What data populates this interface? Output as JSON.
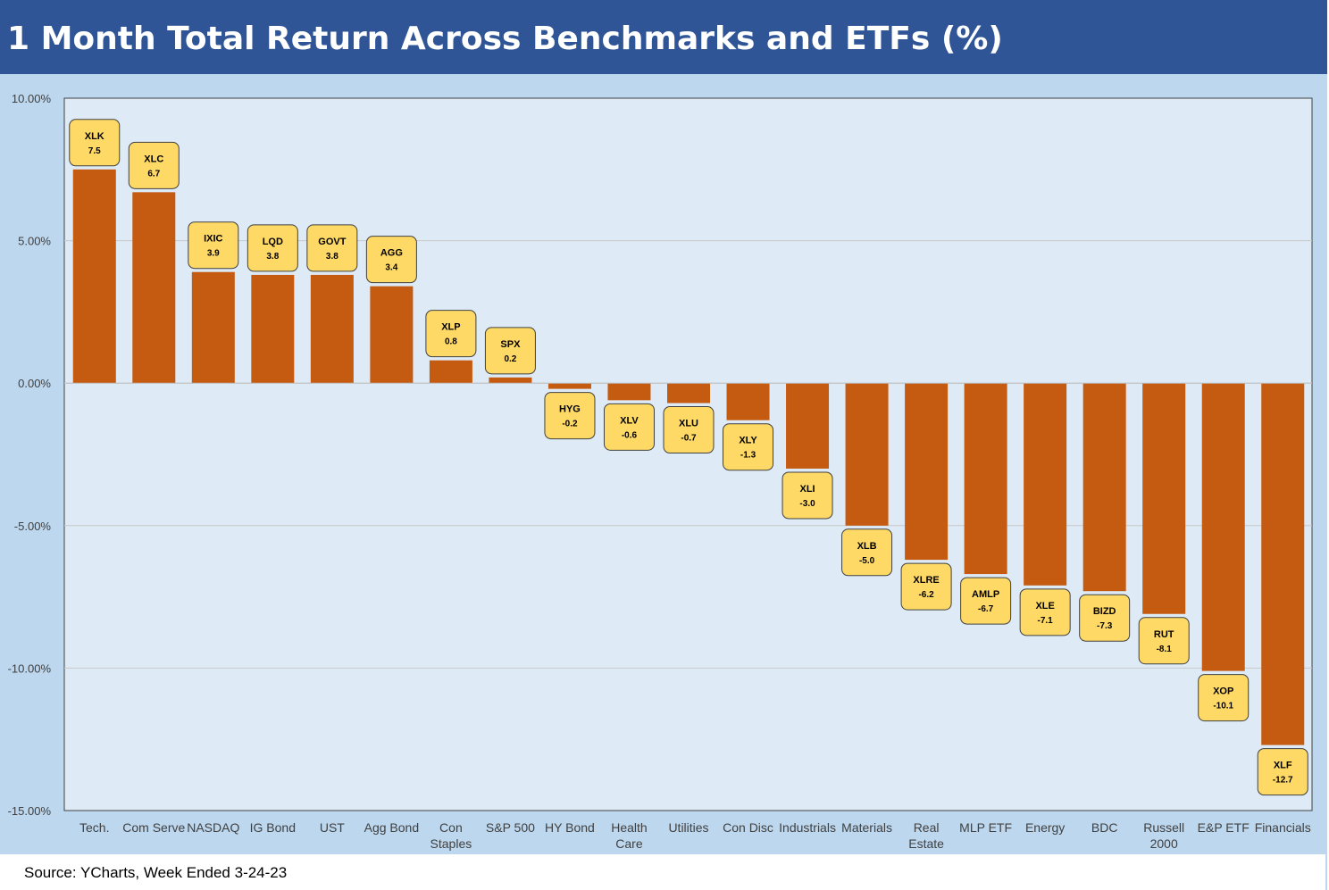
{
  "title": "1 Month Total Return Across Benchmarks and ETFs (%)",
  "source": "Source: YCharts, Week Ended 3-24-23",
  "colors": {
    "header": "#2f5597",
    "bar": "#c55a11",
    "label_bg": "#ffd966",
    "plot_bg": "#deebf7",
    "outer_bg": "#bdd7ee"
  },
  "chart_data": {
    "type": "bar",
    "title": "1 Month Total Return Across Benchmarks and ETFs (%)",
    "xlabel": "",
    "ylabel": "",
    "ylim": [
      -15,
      10
    ],
    "yticks": [
      10,
      5,
      0,
      -5,
      -10,
      -15
    ],
    "ytick_labels": [
      "10.00%",
      "5.00%",
      "0.00%",
      "-5.00%",
      "-10.00%",
      "-15.00%"
    ],
    "grid": true,
    "categories": [
      [
        "Tech."
      ],
      [
        "Com Serve"
      ],
      [
        "NASDAQ"
      ],
      [
        "IG Bond"
      ],
      [
        "UST"
      ],
      [
        "Agg Bond"
      ],
      [
        "Con",
        "Staples"
      ],
      [
        "S&P 500"
      ],
      [
        "HY Bond"
      ],
      [
        "Health",
        "Care"
      ],
      [
        "Utilities"
      ],
      [
        "Con Disc"
      ],
      [
        "Industrials"
      ],
      [
        "Materials"
      ],
      [
        "Real",
        "Estate"
      ],
      [
        "MLP ETF"
      ],
      [
        "Energy"
      ],
      [
        "BDC"
      ],
      [
        "Russell",
        "2000"
      ],
      [
        "E&P ETF"
      ],
      [
        "Financials"
      ]
    ],
    "tickers": [
      "XLK",
      "XLC",
      "IXIC",
      "LQD",
      "GOVT",
      "AGG",
      "XLP",
      "SPX",
      "HYG",
      "XLV",
      "XLU",
      "XLY",
      "XLI",
      "XLB",
      "XLRE",
      "AMLP",
      "XLE",
      "BIZD",
      "RUT",
      "XOP",
      "XLF"
    ],
    "values": [
      7.5,
      6.7,
      3.9,
      3.8,
      3.8,
      3.4,
      0.8,
      0.2,
      -0.2,
      -0.6,
      -0.7,
      -1.3,
      -3.0,
      -5.0,
      -6.2,
      -6.7,
      -7.1,
      -7.3,
      -8.1,
      -10.1,
      -12.7
    ],
    "value_labels": [
      "7.5",
      "6.7",
      "3.9",
      "3.8",
      "3.8",
      "3.4",
      "0.8",
      "0.2",
      "-0.2",
      "-0.6",
      "-0.7",
      "-1.3",
      "-3.0",
      "-5.0",
      "-6.2",
      "-6.7",
      "-7.1",
      "-7.3",
      "-8.1",
      "-10.1",
      "-12.7"
    ]
  }
}
